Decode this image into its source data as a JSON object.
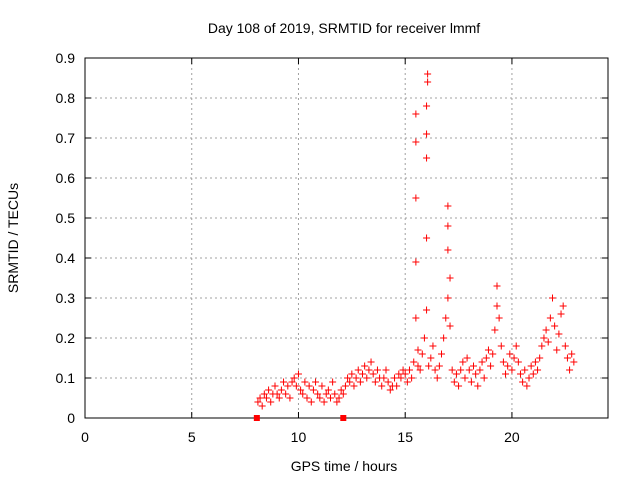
{
  "chart_data": {
    "type": "scatter",
    "title": "Day 108 of 2019, SRMTID for receiver lmmf",
    "xlabel": "GPS time / hours",
    "ylabel": "SRMTID / TECUs",
    "xlim": [
      0,
      24.5
    ],
    "ylim": [
      0,
      0.9
    ],
    "grid": true,
    "xticks": [
      0,
      5,
      10,
      15,
      20
    ],
    "xtick_labels": [
      "0",
      "5",
      "10",
      "15",
      "20"
    ],
    "yticks": [
      0,
      0.1,
      0.2,
      0.3,
      0.4,
      0.5,
      0.6,
      0.7,
      0.8,
      0.9
    ],
    "ytick_labels": [
      "0",
      "0.1",
      "0.2",
      "0.3",
      "0.4",
      "0.5",
      "0.6",
      "0.7",
      "0.8",
      "0.9"
    ],
    "marker": "plus",
    "color": "#ff0000",
    "square_markers": [
      {
        "x": 8.05,
        "y": 0.0
      },
      {
        "x": 12.1,
        "y": 0.0
      }
    ],
    "series": [
      {
        "name": "SRMTID",
        "points": [
          [
            8.1,
            0.04
          ],
          [
            8.2,
            0.05
          ],
          [
            8.3,
            0.03
          ],
          [
            8.4,
            0.06
          ],
          [
            8.5,
            0.05
          ],
          [
            8.6,
            0.07
          ],
          [
            8.7,
            0.04
          ],
          [
            8.8,
            0.06
          ],
          [
            8.9,
            0.08
          ],
          [
            9.0,
            0.06
          ],
          [
            9.1,
            0.05
          ],
          [
            9.2,
            0.07
          ],
          [
            9.3,
            0.09
          ],
          [
            9.4,
            0.06
          ],
          [
            9.5,
            0.08
          ],
          [
            9.6,
            0.05
          ],
          [
            9.7,
            0.09
          ],
          [
            9.8,
            0.1
          ],
          [
            9.9,
            0.08
          ],
          [
            10.0,
            0.11
          ],
          [
            10.1,
            0.07
          ],
          [
            10.2,
            0.06
          ],
          [
            10.3,
            0.09
          ],
          [
            10.4,
            0.05
          ],
          [
            10.5,
            0.08
          ],
          [
            10.6,
            0.04
          ],
          [
            10.7,
            0.07
          ],
          [
            10.8,
            0.09
          ],
          [
            10.9,
            0.06
          ],
          [
            11.0,
            0.05
          ],
          [
            11.1,
            0.08
          ],
          [
            11.2,
            0.04
          ],
          [
            11.3,
            0.06
          ],
          [
            11.4,
            0.07
          ],
          [
            11.5,
            0.05
          ],
          [
            11.6,
            0.09
          ],
          [
            11.7,
            0.06
          ],
          [
            11.8,
            0.04
          ],
          [
            11.9,
            0.05
          ],
          [
            12.0,
            0.07
          ],
          [
            12.1,
            0.06
          ],
          [
            12.2,
            0.08
          ],
          [
            12.3,
            0.1
          ],
          [
            12.4,
            0.09
          ],
          [
            12.5,
            0.11
          ],
          [
            12.6,
            0.08
          ],
          [
            12.7,
            0.1
          ],
          [
            12.8,
            0.12
          ],
          [
            12.9,
            0.09
          ],
          [
            13.0,
            0.11
          ],
          [
            13.1,
            0.13
          ],
          [
            13.2,
            0.1
          ],
          [
            13.3,
            0.12
          ],
          [
            13.4,
            0.14
          ],
          [
            13.5,
            0.11
          ],
          [
            13.6,
            0.09
          ],
          [
            13.7,
            0.12
          ],
          [
            13.8,
            0.1
          ],
          [
            13.9,
            0.08
          ],
          [
            14.0,
            0.1
          ],
          [
            14.1,
            0.12
          ],
          [
            14.2,
            0.09
          ],
          [
            14.3,
            0.07
          ],
          [
            14.4,
            0.08
          ],
          [
            14.5,
            0.1
          ],
          [
            14.6,
            0.08
          ],
          [
            14.7,
            0.11
          ],
          [
            14.8,
            0.1
          ],
          [
            14.9,
            0.12
          ],
          [
            15.0,
            0.11
          ],
          [
            15.1,
            0.09
          ],
          [
            15.2,
            0.12
          ],
          [
            15.3,
            0.1
          ],
          [
            15.4,
            0.14
          ],
          [
            15.5,
            0.25
          ],
          [
            15.5,
            0.39
          ],
          [
            15.5,
            0.55
          ],
          [
            15.5,
            0.69
          ],
          [
            15.5,
            0.76
          ],
          [
            15.6,
            0.13
          ],
          [
            15.6,
            0.17
          ],
          [
            15.7,
            0.12
          ],
          [
            15.8,
            0.16
          ],
          [
            15.9,
            0.2
          ],
          [
            16.0,
            0.27
          ],
          [
            16.0,
            0.45
          ],
          [
            16.0,
            0.65
          ],
          [
            16.0,
            0.71
          ],
          [
            16.0,
            0.78
          ],
          [
            16.05,
            0.84
          ],
          [
            16.05,
            0.86
          ],
          [
            16.1,
            0.13
          ],
          [
            16.2,
            0.15
          ],
          [
            16.3,
            0.18
          ],
          [
            16.4,
            0.12
          ],
          [
            16.5,
            0.1
          ],
          [
            16.6,
            0.13
          ],
          [
            16.7,
            0.16
          ],
          [
            16.8,
            0.2
          ],
          [
            16.9,
            0.25
          ],
          [
            17.0,
            0.3
          ],
          [
            17.0,
            0.42
          ],
          [
            17.0,
            0.48
          ],
          [
            17.0,
            0.53
          ],
          [
            17.1,
            0.35
          ],
          [
            17.1,
            0.23
          ],
          [
            17.2,
            0.12
          ],
          [
            17.3,
            0.09
          ],
          [
            17.4,
            0.11
          ],
          [
            17.5,
            0.08
          ],
          [
            17.6,
            0.12
          ],
          [
            17.7,
            0.14
          ],
          [
            17.8,
            0.1
          ],
          [
            17.9,
            0.15
          ],
          [
            18.0,
            0.12
          ],
          [
            18.1,
            0.09
          ],
          [
            18.2,
            0.13
          ],
          [
            18.3,
            0.11
          ],
          [
            18.4,
            0.08
          ],
          [
            18.5,
            0.12
          ],
          [
            18.6,
            0.14
          ],
          [
            18.7,
            0.1
          ],
          [
            18.8,
            0.15
          ],
          [
            18.9,
            0.17
          ],
          [
            19.0,
            0.13
          ],
          [
            19.1,
            0.16
          ],
          [
            19.2,
            0.22
          ],
          [
            19.3,
            0.28
          ],
          [
            19.3,
            0.33
          ],
          [
            19.4,
            0.25
          ],
          [
            19.5,
            0.18
          ],
          [
            19.6,
            0.14
          ],
          [
            19.7,
            0.11
          ],
          [
            19.8,
            0.13
          ],
          [
            19.9,
            0.16
          ],
          [
            20.0,
            0.12
          ],
          [
            20.1,
            0.15
          ],
          [
            20.2,
            0.18
          ],
          [
            20.3,
            0.14
          ],
          [
            20.4,
            0.11
          ],
          [
            20.5,
            0.09
          ],
          [
            20.6,
            0.12
          ],
          [
            20.7,
            0.08
          ],
          [
            20.8,
            0.1
          ],
          [
            20.9,
            0.13
          ],
          [
            21.0,
            0.11
          ],
          [
            21.1,
            0.14
          ],
          [
            21.2,
            0.12
          ],
          [
            21.3,
            0.15
          ],
          [
            21.4,
            0.18
          ],
          [
            21.5,
            0.2
          ],
          [
            21.6,
            0.22
          ],
          [
            21.7,
            0.19
          ],
          [
            21.8,
            0.25
          ],
          [
            21.9,
            0.3
          ],
          [
            22.0,
            0.23
          ],
          [
            22.1,
            0.17
          ],
          [
            22.2,
            0.21
          ],
          [
            22.3,
            0.26
          ],
          [
            22.4,
            0.28
          ],
          [
            22.5,
            0.18
          ],
          [
            22.6,
            0.15
          ],
          [
            22.7,
            0.12
          ],
          [
            22.8,
            0.16
          ],
          [
            22.9,
            0.14
          ]
        ]
      }
    ]
  }
}
